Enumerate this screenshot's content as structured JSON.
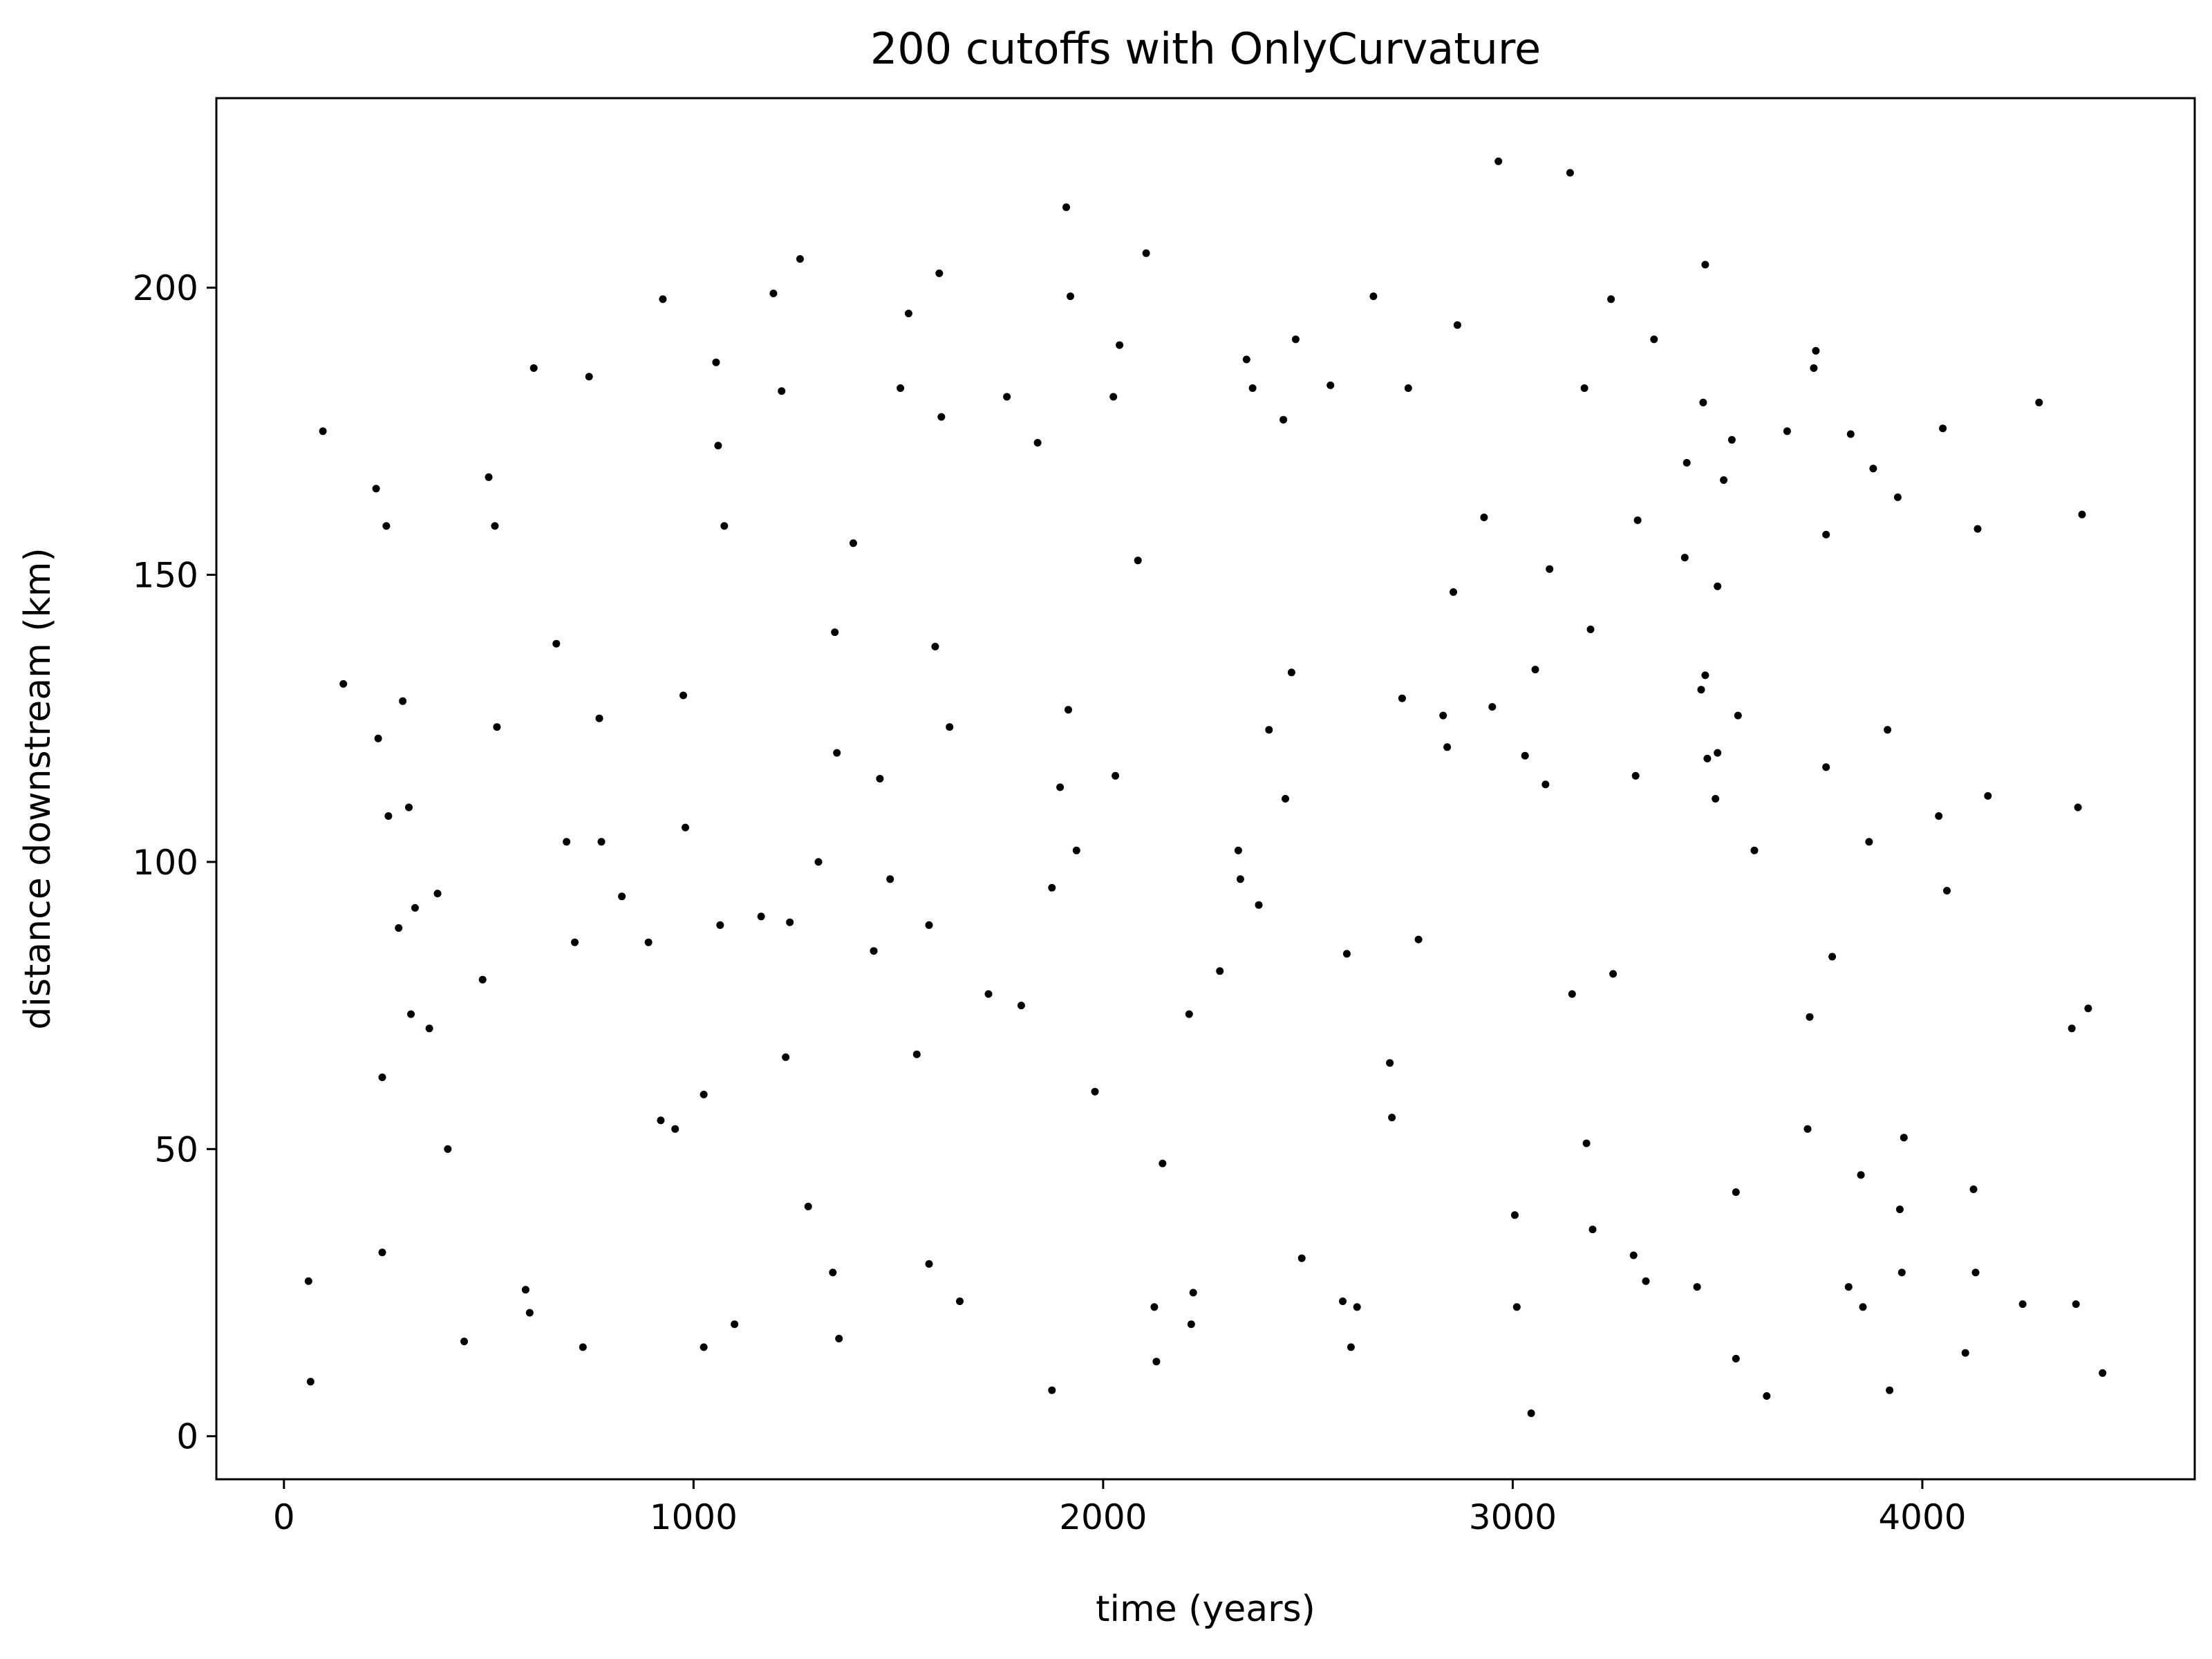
{
  "chart_data": {
    "type": "scatter",
    "title": "200 cutoffs with OnlyCurvature",
    "xlabel": "time (years)",
    "ylabel": "distance downstream (km)",
    "xlim": [
      -165,
      4665
    ],
    "ylim": [
      -7.5,
      233
    ],
    "xticks": [
      0,
      1000,
      2000,
      3000,
      4000
    ],
    "yticks": [
      0,
      50,
      100,
      150,
      200
    ],
    "grid": false,
    "legend": "none",
    "marker_color": "#000000",
    "series": [
      {
        "points": [
          [
            60,
            27
          ],
          [
            65,
            9.5
          ],
          [
            95,
            175
          ],
          [
            145,
            131
          ],
          [
            225,
            165
          ],
          [
            230,
            121.5
          ],
          [
            240,
            62.5
          ],
          [
            240,
            32
          ],
          [
            250,
            158.5
          ],
          [
            255,
            108
          ],
          [
            280,
            88.5
          ],
          [
            290,
            128
          ],
          [
            305,
            109.5
          ],
          [
            310,
            73.5
          ],
          [
            320,
            92
          ],
          [
            355,
            71
          ],
          [
            375,
            94.5
          ],
          [
            400,
            50
          ],
          [
            440,
            16.5
          ],
          [
            485,
            79.5
          ],
          [
            500,
            167
          ],
          [
            515,
            158.5
          ],
          [
            520,
            123.5
          ],
          [
            590,
            25.5
          ],
          [
            600,
            21.5
          ],
          [
            610,
            186
          ],
          [
            665,
            138
          ],
          [
            690,
            103.5
          ],
          [
            710,
            86
          ],
          [
            730,
            15.5
          ],
          [
            745,
            184.5
          ],
          [
            770,
            125
          ],
          [
            775,
            103.5
          ],
          [
            825,
            94
          ],
          [
            890,
            86
          ],
          [
            920,
            55
          ],
          [
            925,
            198
          ],
          [
            955,
            53.5
          ],
          [
            975,
            129
          ],
          [
            980,
            106
          ],
          [
            1025,
            59.5
          ],
          [
            1025,
            15.5
          ],
          [
            1055,
            187
          ],
          [
            1060,
            172.5
          ],
          [
            1065,
            89
          ],
          [
            1075,
            158.5
          ],
          [
            1100,
            19.5
          ],
          [
            1165,
            90.5
          ],
          [
            1195,
            199
          ],
          [
            1215,
            182
          ],
          [
            1225,
            66
          ],
          [
            1235,
            89.5
          ],
          [
            1260,
            205
          ],
          [
            1280,
            40
          ],
          [
            1305,
            100
          ],
          [
            1340,
            28.5
          ],
          [
            1345,
            140
          ],
          [
            1350,
            119
          ],
          [
            1355,
            17
          ],
          [
            1390,
            155.5
          ],
          [
            1440,
            84.5
          ],
          [
            1455,
            114.5
          ],
          [
            1480,
            97
          ],
          [
            1505,
            182.5
          ],
          [
            1525,
            195.5
          ],
          [
            1545,
            66.5
          ],
          [
            1575,
            89
          ],
          [
            1575,
            30
          ],
          [
            1590,
            137.5
          ],
          [
            1600,
            202.5
          ],
          [
            1605,
            177.5
          ],
          [
            1625,
            123.5
          ],
          [
            1650,
            23.5
          ],
          [
            1720,
            77
          ],
          [
            1765,
            181
          ],
          [
            1800,
            75
          ],
          [
            1840,
            173
          ],
          [
            1875,
            95.5
          ],
          [
            1875,
            8
          ],
          [
            1895,
            113
          ],
          [
            1910,
            214
          ],
          [
            1915,
            126.5
          ],
          [
            1920,
            198.5
          ],
          [
            1935,
            102
          ],
          [
            1980,
            60
          ],
          [
            2025,
            181
          ],
          [
            2030,
            115
          ],
          [
            2040,
            190
          ],
          [
            2085,
            152.5
          ],
          [
            2105,
            206
          ],
          [
            2125,
            22.5
          ],
          [
            2130,
            13
          ],
          [
            2145,
            47.5
          ],
          [
            2210,
            73.5
          ],
          [
            2215,
            19.5
          ],
          [
            2220,
            25
          ],
          [
            2285,
            81
          ],
          [
            2330,
            102
          ],
          [
            2335,
            97
          ],
          [
            2350,
            187.5
          ],
          [
            2365,
            182.5
          ],
          [
            2380,
            92.5
          ],
          [
            2405,
            123
          ],
          [
            2440,
            177
          ],
          [
            2445,
            111
          ],
          [
            2460,
            133
          ],
          [
            2470,
            191
          ],
          [
            2485,
            31
          ],
          [
            2555,
            183
          ],
          [
            2585,
            23.5
          ],
          [
            2595,
            84
          ],
          [
            2605,
            15.5
          ],
          [
            2620,
            22.5
          ],
          [
            2660,
            198.5
          ],
          [
            2700,
            65
          ],
          [
            2705,
            55.5
          ],
          [
            2730,
            128.5
          ],
          [
            2745,
            182.5
          ],
          [
            2770,
            86.5
          ],
          [
            2830,
            125.5
          ],
          [
            2840,
            120
          ],
          [
            2855,
            147
          ],
          [
            2865,
            193.5
          ],
          [
            2930,
            160
          ],
          [
            2950,
            127
          ],
          [
            2965,
            222
          ],
          [
            3005,
            38.5
          ],
          [
            3010,
            22.5
          ],
          [
            3030,
            118.5
          ],
          [
            3045,
            4
          ],
          [
            3055,
            133.5
          ],
          [
            3080,
            113.5
          ],
          [
            3090,
            151
          ],
          [
            3140,
            220
          ],
          [
            3145,
            77
          ],
          [
            3175,
            182.5
          ],
          [
            3180,
            51
          ],
          [
            3190,
            140.5
          ],
          [
            3195,
            36
          ],
          [
            3240,
            198
          ],
          [
            3245,
            80.5
          ],
          [
            3295,
            31.5
          ],
          [
            3300,
            115
          ],
          [
            3305,
            159.5
          ],
          [
            3325,
            27
          ],
          [
            3345,
            191
          ],
          [
            3420,
            153
          ],
          [
            3425,
            169.5
          ],
          [
            3450,
            26
          ],
          [
            3460,
            130
          ],
          [
            3465,
            180
          ],
          [
            3470,
            204
          ],
          [
            3470,
            132.5
          ],
          [
            3475,
            118
          ],
          [
            3495,
            111
          ],
          [
            3500,
            119
          ],
          [
            3500,
            148
          ],
          [
            3515,
            166.5
          ],
          [
            3535,
            173.5
          ],
          [
            3545,
            42.5
          ],
          [
            3545,
            13.5
          ],
          [
            3550,
            125.5
          ],
          [
            3590,
            102
          ],
          [
            3620,
            7
          ],
          [
            3670,
            175
          ],
          [
            3720,
            53.5
          ],
          [
            3725,
            73
          ],
          [
            3735,
            186
          ],
          [
            3740,
            189
          ],
          [
            3765,
            157
          ],
          [
            3765,
            116.5
          ],
          [
            3780,
            83.5
          ],
          [
            3820,
            26
          ],
          [
            3825,
            174.5
          ],
          [
            3850,
            45.5
          ],
          [
            3855,
            22.5
          ],
          [
            3870,
            103.5
          ],
          [
            3880,
            168.5
          ],
          [
            3915,
            123
          ],
          [
            3920,
            8
          ],
          [
            3940,
            163.5
          ],
          [
            3945,
            39.5
          ],
          [
            3950,
            28.5
          ],
          [
            3955,
            52
          ],
          [
            4040,
            108
          ],
          [
            4050,
            175.5
          ],
          [
            4060,
            95
          ],
          [
            4105,
            14.5
          ],
          [
            4125,
            43
          ],
          [
            4130,
            28.5
          ],
          [
            4135,
            158
          ],
          [
            4160,
            111.5
          ],
          [
            4245,
            23
          ],
          [
            4285,
            180
          ],
          [
            4365,
            71
          ],
          [
            4375,
            23
          ],
          [
            4380,
            109.5
          ],
          [
            4390,
            160.5
          ],
          [
            4405,
            74.5
          ],
          [
            4440,
            11
          ]
        ]
      }
    ]
  }
}
